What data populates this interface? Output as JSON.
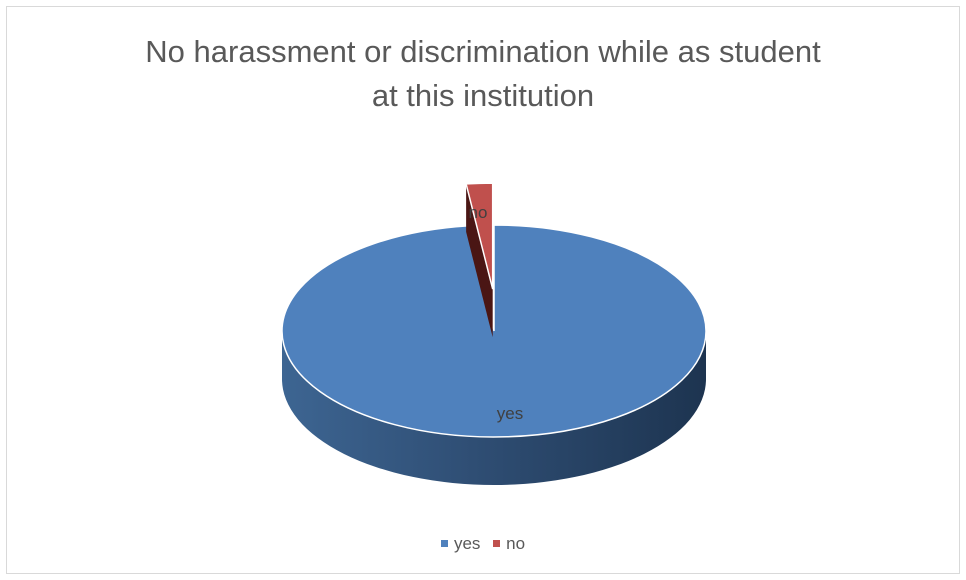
{
  "chart_data": {
    "type": "pie",
    "title_lines": [
      "No harassment or discrimination while as student",
      "at this institution"
    ],
    "categories": [
      "yes",
      "no"
    ],
    "values": [
      98,
      2
    ],
    "exploded": [
      "no"
    ],
    "colors": [
      "#4f81bd",
      "#c0504d"
    ],
    "data_labels": [
      "yes",
      "no"
    ],
    "legend_position": "bottom",
    "three_d": true
  }
}
